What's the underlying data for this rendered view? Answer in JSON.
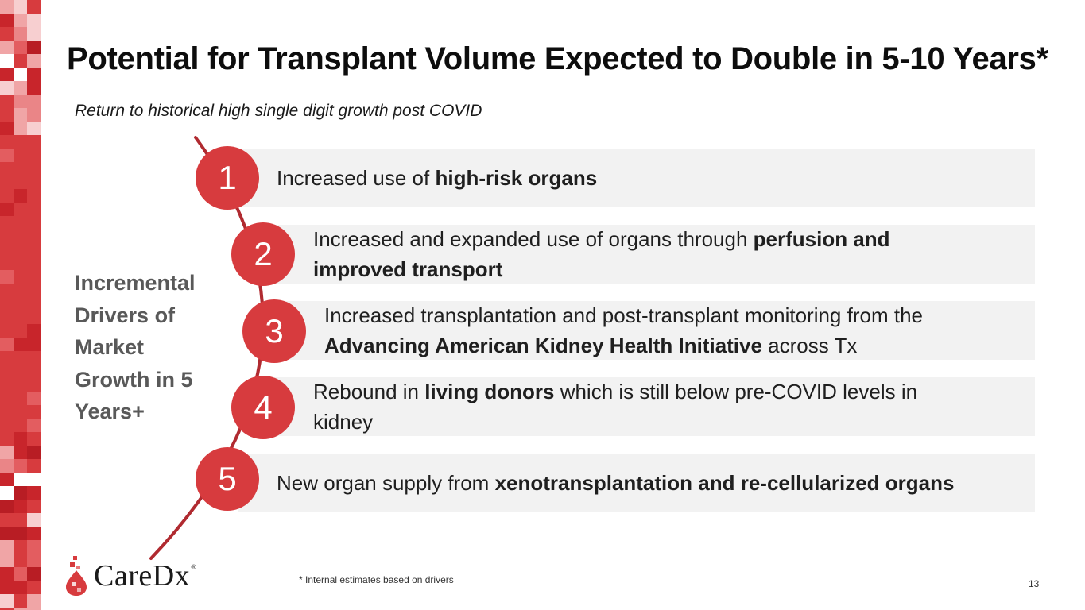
{
  "slide": {
    "title": "Potential for Transplant Volume Expected to Double in 5-10 Years*",
    "subtitle": "Return to historical high single digit growth post COVID",
    "side_label": [
      "Incremental",
      "Drivers of",
      "Market",
      "Growth in 5",
      "Years+"
    ],
    "drivers": [
      {
        "number": "1",
        "segments": [
          {
            "text": "Increased use of ",
            "bold": false
          },
          {
            "text": "high-risk organs",
            "bold": true
          }
        ]
      },
      {
        "number": "2",
        "segments": [
          {
            "text": "Increased and expanded use of organs through ",
            "bold": false
          },
          {
            "text": "perfusion and improved transport",
            "bold": true
          }
        ]
      },
      {
        "number": "3",
        "segments": [
          {
            "text": "Increased transplantation and post-transplant monitoring from the ",
            "bold": false
          },
          {
            "text": "Advancing American Kidney Health Initiative",
            "bold": true
          },
          {
            "text": " across Tx",
            "bold": false
          }
        ]
      },
      {
        "number": "4",
        "segments": [
          {
            "text": "Rebound in ",
            "bold": false
          },
          {
            "text": "living donors",
            "bold": true
          },
          {
            "text": " which is still below pre-COVID levels in kidney",
            "bold": false
          }
        ]
      },
      {
        "number": "5",
        "segments": [
          {
            "text": "New organ supply from ",
            "bold": false
          },
          {
            "text": "xenotransplantation and re-cellularized organs",
            "bold": true
          }
        ]
      }
    ],
    "footnote": "* Internal estimates based on drivers",
    "page_number": "13"
  },
  "logo": {
    "name": "CareDx",
    "mark": "®"
  },
  "colors": {
    "accent": "#d73b3e",
    "arc": "#b02a30",
    "band": "#f2f2f2",
    "side_label": "#595959"
  }
}
